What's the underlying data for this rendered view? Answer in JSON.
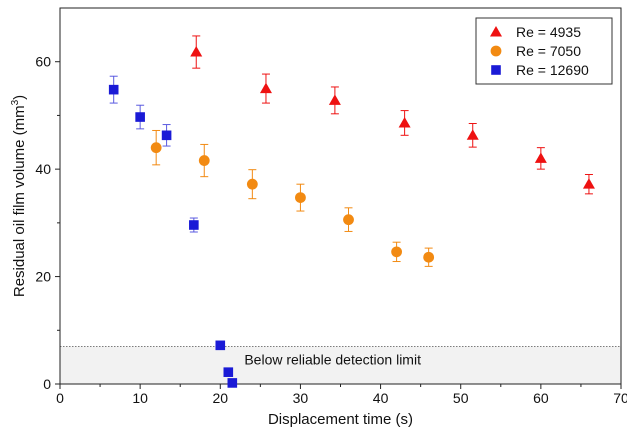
{
  "chart_data": {
    "type": "scatter",
    "xlabel": "Displacement time (s)",
    "ylabel_main": "Residual oil film volume (mm",
    "ylabel_sup": "3",
    "ylabel_end": ")",
    "xlim": [
      0,
      70
    ],
    "ylim": [
      0,
      70
    ],
    "xticks": [
      0,
      10,
      20,
      30,
      40,
      50,
      60,
      70
    ],
    "yticks": [
      0,
      20,
      40,
      60
    ],
    "grid": false,
    "legend_position": "top-right",
    "annotation": "Below reliable detection limit",
    "detection_limit": 7,
    "series": [
      {
        "name": "Re = 4935",
        "marker": "triangle",
        "color": "#ee1111",
        "error_color": "#ee1111",
        "points": [
          {
            "x": 17,
            "y": 61.8,
            "err": 3
          },
          {
            "x": 25.7,
            "y": 55,
            "err": 2.7
          },
          {
            "x": 34.3,
            "y": 52.8,
            "err": 2.5
          },
          {
            "x": 43,
            "y": 48.6,
            "err": 2.3
          },
          {
            "x": 51.5,
            "y": 46.3,
            "err": 2.2
          },
          {
            "x": 60,
            "y": 42,
            "err": 2
          },
          {
            "x": 66,
            "y": 37.2,
            "err": 1.8
          }
        ]
      },
      {
        "name": "Re = 7050",
        "marker": "circle",
        "color": "#f28a12",
        "error_color": "#f28a12",
        "points": [
          {
            "x": 12,
            "y": 44,
            "err": 3.2
          },
          {
            "x": 18,
            "y": 41.6,
            "err": 3
          },
          {
            "x": 24,
            "y": 37.2,
            "err": 2.7
          },
          {
            "x": 30,
            "y": 34.7,
            "err": 2.5
          },
          {
            "x": 36,
            "y": 30.6,
            "err": 2.2
          },
          {
            "x": 42,
            "y": 24.6,
            "err": 1.8
          },
          {
            "x": 46,
            "y": 23.6,
            "err": 1.7
          }
        ]
      },
      {
        "name": "Re = 12690",
        "marker": "square",
        "color": "#1a1ad6",
        "error_color": "#5a5ae0",
        "points": [
          {
            "x": 6.7,
            "y": 54.8,
            "err": 2.5
          },
          {
            "x": 10,
            "y": 49.7,
            "err": 2.2
          },
          {
            "x": 13.3,
            "y": 46.3,
            "err": 2
          },
          {
            "x": 16.7,
            "y": 29.6,
            "err": 1.3
          },
          {
            "x": 20,
            "y": 7.2,
            "err": 0
          },
          {
            "x": 21,
            "y": 2.2,
            "err": 0
          },
          {
            "x": 21.5,
            "y": 0.2,
            "err": 0
          }
        ]
      }
    ]
  }
}
